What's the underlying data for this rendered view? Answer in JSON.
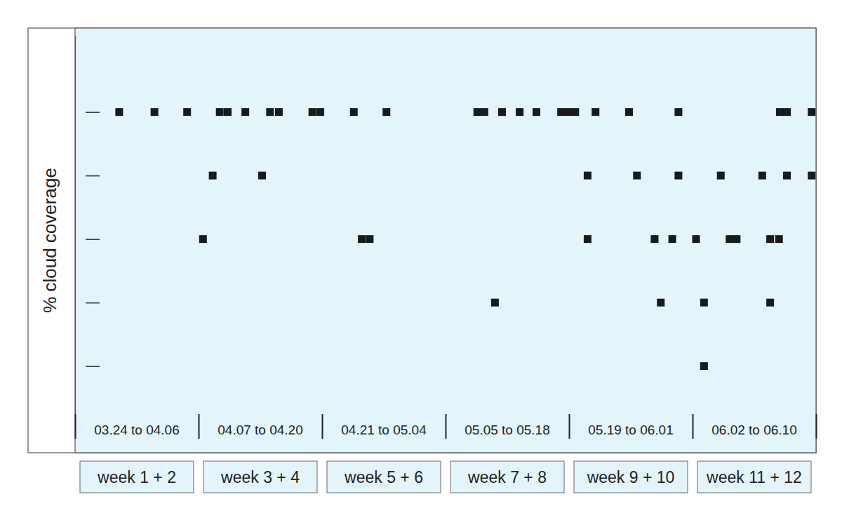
{
  "chart_data": {
    "type": "scatter",
    "y_label": "% cloud coverage",
    "period_labels": [
      "03.24 to 04.06",
      "04.07 to 04.20",
      "04.21 to 05.04",
      "05.05 to 05.18",
      "05.19 to 06.01",
      "06.02 to 06.10"
    ],
    "week_labels": [
      "week 1 + 2",
      "week 3 + 4",
      "week 5 + 6",
      "week 7 + 8",
      "week 9 + 10",
      "week 11 + 12"
    ],
    "x": [
      5.0,
      9.0,
      12.7,
      16.4,
      17.3,
      19.3,
      22.1,
      23.1,
      26.9,
      27.8,
      31.6,
      35.3,
      45.6,
      46.4,
      48.4,
      50.4,
      52.3,
      55.1,
      55.9,
      56.7,
      59.0,
      62.8,
      68.4,
      79.9,
      80.7,
      83.5,
      15.6,
      21.2,
      58.1,
      63.7,
      68.4,
      73.2,
      77.9,
      80.7,
      83.5,
      14.5,
      32.5,
      33.4,
      58.1,
      65.7,
      67.7,
      70.4,
      74.2,
      75.0,
      78.8,
      79.8,
      47.6,
      66.4,
      71.3,
      78.8,
      71.3
    ],
    "values": [
      100,
      100,
      100,
      100,
      100,
      100,
      100,
      100,
      100,
      100,
      100,
      100,
      100,
      100,
      100,
      100,
      100,
      100,
      100,
      100,
      100,
      100,
      100,
      100,
      100,
      100,
      75,
      75,
      75,
      75,
      75,
      75,
      75,
      75,
      75,
      50,
      50,
      50,
      50,
      50,
      50,
      50,
      50,
      50,
      50,
      50,
      25,
      25,
      25,
      25,
      0
    ],
    "xlim": [
      0,
      84
    ],
    "xticks": [
      0,
      14,
      28,
      42,
      56,
      70,
      84
    ],
    "ylim": [
      -20,
      130
    ],
    "yticks": [
      0,
      25,
      50,
      75,
      100
    ],
    "tick_labels": false,
    "marker": "square",
    "color": "#1a1a1a"
  }
}
